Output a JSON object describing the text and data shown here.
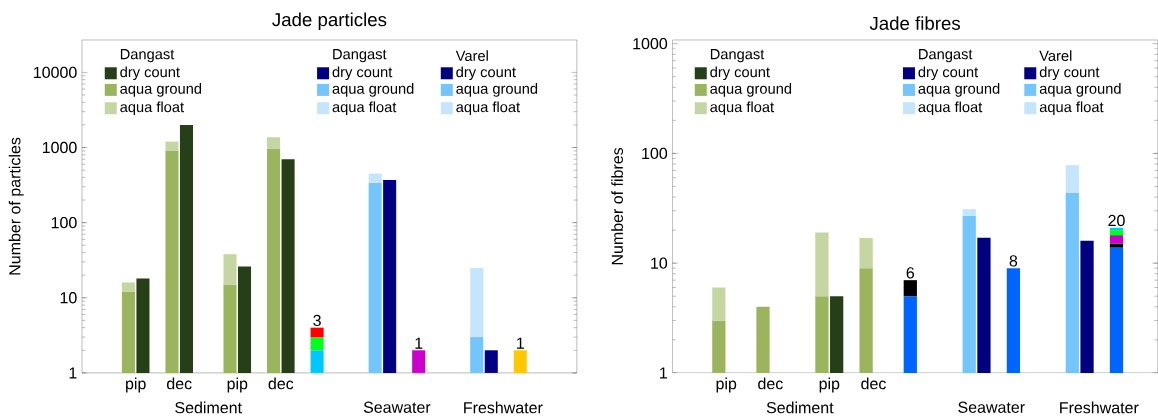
{
  "chart_data": [
    {
      "type": "bar",
      "title": "Jade particles",
      "ylabel": "Number of particles",
      "log": "y",
      "stacked": true,
      "legend": "top",
      "categories": [
        "pip",
        null,
        null,
        "dec",
        null,
        null,
        null,
        "pip",
        null,
        null,
        "dec",
        null,
        null,
        null,
        null,
        null,
        null,
        null,
        null,
        null,
        null,
        null,
        null,
        null,
        null,
        null,
        null,
        null
      ],
      "ylim": [
        1,
        27000
      ],
      "yticks": [
        1,
        10,
        100,
        1000,
        10000
      ],
      "annotations": [
        "Dangast",
        "Dangast",
        "Varel",
        "Sediment",
        "Seawater",
        "Freshwater"
      ],
      "totals": [
        null,
        null,
        null,
        null,
        null,
        null,
        null,
        null,
        null,
        null,
        null,
        null,
        null,
        "3",
        null,
        null,
        null,
        null,
        null,
        null,
        "1",
        null,
        null,
        null,
        null,
        null,
        null,
        "1"
      ],
      "series": [
        {
          "name": "dry count",
          "color": "#263f18",
          "values": [
            null,
            18,
            null,
            null,
            2000,
            null,
            null,
            null,
            26,
            null,
            null,
            700,
            null,
            null,
            null,
            null,
            null,
            null,
            null,
            null,
            null,
            null,
            null,
            null,
            null,
            null,
            null,
            null
          ]
        },
        {
          "name": "aqua ground",
          "color": "#9bb55e",
          "values": [
            12,
            null,
            null,
            900,
            null,
            null,
            null,
            15,
            null,
            null,
            970,
            null,
            null,
            null,
            null,
            null,
            null,
            null,
            null,
            null,
            null,
            null,
            null,
            null,
            null,
            null,
            null,
            null
          ]
        },
        {
          "name": "aqua float",
          "color": "#c5d6a3",
          "values": [
            4,
            null,
            null,
            300,
            null,
            null,
            null,
            23,
            null,
            null,
            400,
            null,
            null,
            null,
            null,
            null,
            null,
            null,
            null,
            null,
            null,
            null,
            null,
            null,
            null,
            null,
            null,
            null
          ]
        },
        {
          "name": "dry count",
          "color": "#000080",
          "values": [
            null,
            null,
            null,
            null,
            null,
            null,
            null,
            null,
            null,
            null,
            null,
            null,
            null,
            null,
            null,
            null,
            null,
            null,
            370,
            null,
            null,
            null,
            null,
            null,
            null,
            null,
            null,
            null
          ]
        },
        {
          "name": "aqua ground",
          "color": "#73c5fb",
          "values": [
            null,
            null,
            null,
            null,
            null,
            null,
            null,
            null,
            null,
            null,
            null,
            null,
            null,
            null,
            null,
            null,
            null,
            340,
            null,
            null,
            null,
            null,
            null,
            null,
            null,
            null,
            null,
            null
          ]
        },
        {
          "name": "aqua float",
          "color": "#c4e5fc",
          "values": [
            null,
            null,
            null,
            null,
            null,
            null,
            null,
            null,
            null,
            null,
            null,
            null,
            null,
            null,
            null,
            null,
            null,
            110,
            null,
            null,
            null,
            null,
            null,
            null,
            null,
            null,
            null,
            null
          ]
        },
        {
          "name": "dry count",
          "color": "#000080",
          "values": [
            null,
            null,
            null,
            null,
            null,
            null,
            null,
            null,
            null,
            null,
            null,
            null,
            null,
            null,
            null,
            null,
            null,
            null,
            null,
            null,
            null,
            null,
            null,
            null,
            null,
            2,
            null,
            null
          ]
        },
        {
          "name": "aqua ground",
          "color": "#73c5fb",
          "values": [
            null,
            null,
            null,
            null,
            null,
            null,
            null,
            null,
            null,
            null,
            null,
            null,
            null,
            null,
            null,
            null,
            null,
            null,
            null,
            null,
            null,
            null,
            null,
            null,
            3,
            null,
            null,
            null
          ]
        },
        {
          "name": "aqua float",
          "color": "#c4e5fc",
          "values": [
            null,
            null,
            null,
            null,
            null,
            null,
            null,
            null,
            null,
            null,
            null,
            null,
            null,
            null,
            null,
            null,
            null,
            null,
            null,
            null,
            null,
            null,
            null,
            null,
            22,
            null,
            null,
            null
          ]
        },
        {
          "color": "#00c8ff",
          "values": [
            null,
            null,
            null,
            null,
            null,
            null,
            null,
            null,
            null,
            null,
            null,
            null,
            null,
            1,
            null,
            null,
            null,
            null,
            null,
            null,
            null,
            null,
            null,
            null,
            null,
            null,
            null,
            null
          ],
          "base": [
            null,
            null,
            null,
            null,
            null,
            null,
            null,
            null,
            null,
            null,
            null,
            null,
            null,
            1,
            null,
            null,
            null,
            null,
            null,
            null,
            null,
            null,
            null,
            null,
            null,
            null,
            null,
            null
          ]
        },
        {
          "color": "#00ff1e",
          "values": [
            null,
            null,
            null,
            null,
            null,
            null,
            null,
            null,
            null,
            null,
            null,
            null,
            null,
            1,
            null,
            null,
            null,
            null,
            null,
            null,
            null,
            null,
            null,
            null,
            null,
            null,
            null,
            null
          ],
          "base": [
            null,
            null,
            null,
            null,
            null,
            null,
            null,
            null,
            null,
            null,
            null,
            null,
            null,
            2,
            null,
            null,
            null,
            null,
            null,
            null,
            null,
            null,
            null,
            null,
            null,
            null,
            null,
            null
          ]
        },
        {
          "color": "#ff0000",
          "values": [
            null,
            null,
            null,
            null,
            null,
            null,
            null,
            null,
            null,
            null,
            null,
            null,
            null,
            1,
            null,
            null,
            null,
            null,
            null,
            null,
            null,
            null,
            null,
            null,
            null,
            null,
            null,
            null
          ],
          "base": [
            null,
            null,
            null,
            null,
            null,
            null,
            null,
            null,
            null,
            null,
            null,
            null,
            null,
            3,
            null,
            null,
            null,
            null,
            null,
            null,
            null,
            null,
            null,
            null,
            null,
            null,
            null,
            null
          ]
        },
        {
          "color": "#cc00cc",
          "values": [
            null,
            null,
            null,
            null,
            null,
            null,
            null,
            null,
            null,
            null,
            null,
            null,
            null,
            null,
            null,
            null,
            null,
            null,
            null,
            null,
            1,
            null,
            null,
            null,
            null,
            null,
            null,
            null
          ],
          "base": [
            null,
            null,
            null,
            null,
            null,
            null,
            null,
            null,
            null,
            null,
            null,
            null,
            null,
            null,
            null,
            null,
            null,
            null,
            null,
            null,
            1,
            null,
            null,
            null,
            null,
            null,
            null,
            null
          ]
        },
        {
          "color": "#ffc800",
          "values": [
            null,
            null,
            null,
            null,
            null,
            null,
            null,
            null,
            null,
            null,
            null,
            null,
            null,
            null,
            null,
            null,
            null,
            null,
            null,
            null,
            null,
            null,
            null,
            null,
            null,
            null,
            null,
            1
          ],
          "base": [
            null,
            null,
            null,
            null,
            null,
            null,
            null,
            null,
            null,
            null,
            null,
            null,
            null,
            null,
            null,
            null,
            null,
            null,
            null,
            null,
            null,
            null,
            null,
            null,
            null,
            null,
            null,
            1
          ]
        }
      ]
    },
    {
      "type": "bar",
      "title": "Jade fibres",
      "ylabel": "Number of fibres",
      "log": "y",
      "stacked": true,
      "legend": "top",
      "categories": [
        "pip",
        null,
        null,
        "dec",
        null,
        null,
        null,
        "pip",
        null,
        null,
        "dec",
        null,
        null,
        null,
        null,
        null,
        null,
        null,
        null,
        null,
        null,
        null,
        null,
        null,
        null,
        null,
        null,
        null
      ],
      "ylim": [
        1,
        1080
      ],
      "yticks": [
        1,
        10,
        100,
        1000
      ],
      "annotations": [
        "Dangast",
        "Dangast",
        "Varel",
        "Sediment",
        "Seawater",
        "Freshwater"
      ],
      "totals": [
        null,
        null,
        null,
        null,
        null,
        null,
        null,
        null,
        null,
        null,
        null,
        null,
        null,
        "6",
        null,
        null,
        null,
        null,
        null,
        null,
        "8",
        null,
        null,
        null,
        null,
        null,
        null,
        "20"
      ],
      "series": [
        {
          "name": "dry count",
          "color": "#263f18",
          "values": [
            null,
            null,
            null,
            null,
            null,
            null,
            null,
            null,
            5,
            null,
            null,
            null,
            null,
            null,
            null,
            null,
            null,
            null,
            null,
            null,
            null,
            null,
            null,
            null,
            null,
            null,
            null,
            null
          ]
        },
        {
          "name": "aqua ground",
          "color": "#9bb55e",
          "values": [
            3,
            null,
            null,
            4,
            null,
            null,
            null,
            5,
            null,
            null,
            9,
            null,
            null,
            null,
            null,
            null,
            null,
            null,
            null,
            null,
            null,
            null,
            null,
            null,
            null,
            null,
            null,
            null
          ]
        },
        {
          "name": "aqua float",
          "color": "#c5d6a3",
          "values": [
            3,
            null,
            null,
            null,
            null,
            null,
            null,
            14,
            null,
            null,
            8,
            null,
            null,
            null,
            null,
            null,
            null,
            null,
            null,
            null,
            null,
            null,
            null,
            null,
            null,
            null,
            null,
            null
          ]
        },
        {
          "name": "dry count",
          "color": "#000080",
          "values": [
            null,
            null,
            null,
            null,
            null,
            null,
            null,
            null,
            null,
            null,
            null,
            null,
            null,
            null,
            null,
            null,
            null,
            null,
            17,
            null,
            null,
            null,
            null,
            null,
            null,
            null,
            null,
            null
          ]
        },
        {
          "name": "aqua ground",
          "color": "#73c5fb",
          "values": [
            null,
            null,
            null,
            null,
            null,
            null,
            null,
            null,
            null,
            null,
            null,
            null,
            null,
            null,
            null,
            null,
            null,
            27,
            null,
            null,
            null,
            null,
            null,
            null,
            null,
            null,
            null,
            null
          ]
        },
        {
          "name": "aqua float",
          "color": "#c4e5fc",
          "values": [
            null,
            null,
            null,
            null,
            null,
            null,
            null,
            null,
            null,
            null,
            null,
            null,
            null,
            null,
            null,
            null,
            null,
            4,
            null,
            null,
            null,
            null,
            null,
            null,
            null,
            null,
            null,
            null
          ]
        },
        {
          "name": "dry count",
          "color": "#000080",
          "values": [
            null,
            null,
            null,
            null,
            null,
            null,
            null,
            null,
            null,
            null,
            null,
            null,
            null,
            null,
            null,
            null,
            null,
            null,
            null,
            null,
            null,
            null,
            null,
            null,
            null,
            16,
            null,
            null
          ]
        },
        {
          "name": "aqua ground",
          "color": "#73c5fb",
          "values": [
            null,
            null,
            null,
            null,
            null,
            null,
            null,
            null,
            null,
            null,
            null,
            null,
            null,
            null,
            null,
            null,
            null,
            null,
            null,
            null,
            null,
            null,
            null,
            null,
            44,
            null,
            null,
            null
          ]
        },
        {
          "name": "aqua float",
          "color": "#c4e5fc",
          "values": [
            null,
            null,
            null,
            null,
            null,
            null,
            null,
            null,
            null,
            null,
            null,
            null,
            null,
            null,
            null,
            null,
            null,
            null,
            null,
            null,
            null,
            null,
            null,
            null,
            34,
            null,
            null,
            null
          ]
        },
        {
          "color": "#0064ff",
          "values": [
            null,
            null,
            null,
            null,
            null,
            null,
            null,
            null,
            null,
            null,
            null,
            null,
            null,
            4,
            null,
            null,
            null,
            null,
            null,
            null,
            8,
            null,
            null,
            null,
            null,
            null,
            null,
            13
          ],
          "base": [
            null,
            null,
            null,
            null,
            null,
            null,
            null,
            null,
            null,
            null,
            null,
            null,
            null,
            1,
            null,
            null,
            null,
            null,
            null,
            null,
            1,
            null,
            null,
            null,
            null,
            null,
            null,
            1
          ]
        },
        {
          "color": "#000000",
          "values": [
            null,
            null,
            null,
            null,
            null,
            null,
            null,
            null,
            null,
            null,
            null,
            null,
            null,
            2,
            null,
            null,
            null,
            null,
            null,
            null,
            null,
            null,
            null,
            null,
            null,
            null,
            null,
            1
          ],
          "base": [
            null,
            null,
            null,
            null,
            null,
            null,
            null,
            null,
            null,
            null,
            null,
            null,
            null,
            5,
            null,
            null,
            null,
            null,
            null,
            null,
            null,
            null,
            null,
            null,
            null,
            null,
            null,
            14
          ]
        },
        {
          "color": "#cc00cc",
          "values": [
            null,
            null,
            null,
            null,
            null,
            null,
            null,
            null,
            null,
            null,
            null,
            null,
            null,
            null,
            null,
            null,
            null,
            null,
            null,
            null,
            null,
            null,
            null,
            null,
            null,
            null,
            null,
            3
          ],
          "base": [
            null,
            null,
            null,
            null,
            null,
            null,
            null,
            null,
            null,
            null,
            null,
            null,
            null,
            null,
            null,
            null,
            null,
            null,
            null,
            null,
            null,
            null,
            null,
            null,
            null,
            null,
            null,
            15
          ]
        },
        {
          "color": "#00ff1e",
          "values": [
            null,
            null,
            null,
            null,
            null,
            null,
            null,
            null,
            null,
            null,
            null,
            null,
            null,
            null,
            null,
            null,
            null,
            null,
            null,
            null,
            null,
            null,
            null,
            null,
            null,
            null,
            null,
            2
          ],
          "base": [
            null,
            null,
            null,
            null,
            null,
            null,
            null,
            null,
            null,
            null,
            null,
            null,
            null,
            null,
            null,
            null,
            null,
            null,
            null,
            null,
            null,
            null,
            null,
            null,
            null,
            null,
            null,
            18
          ]
        },
        {
          "color": "#00c8ff",
          "values": [
            null,
            null,
            null,
            null,
            null,
            null,
            null,
            null,
            null,
            null,
            null,
            null,
            null,
            null,
            null,
            null,
            null,
            null,
            null,
            null,
            null,
            null,
            null,
            null,
            null,
            null,
            null,
            1
          ],
          "base": [
            null,
            null,
            null,
            null,
            null,
            null,
            null,
            null,
            null,
            null,
            null,
            null,
            null,
            null,
            null,
            null,
            null,
            null,
            null,
            null,
            null,
            null,
            null,
            null,
            null,
            null,
            null,
            20
          ]
        }
      ]
    }
  ]
}
